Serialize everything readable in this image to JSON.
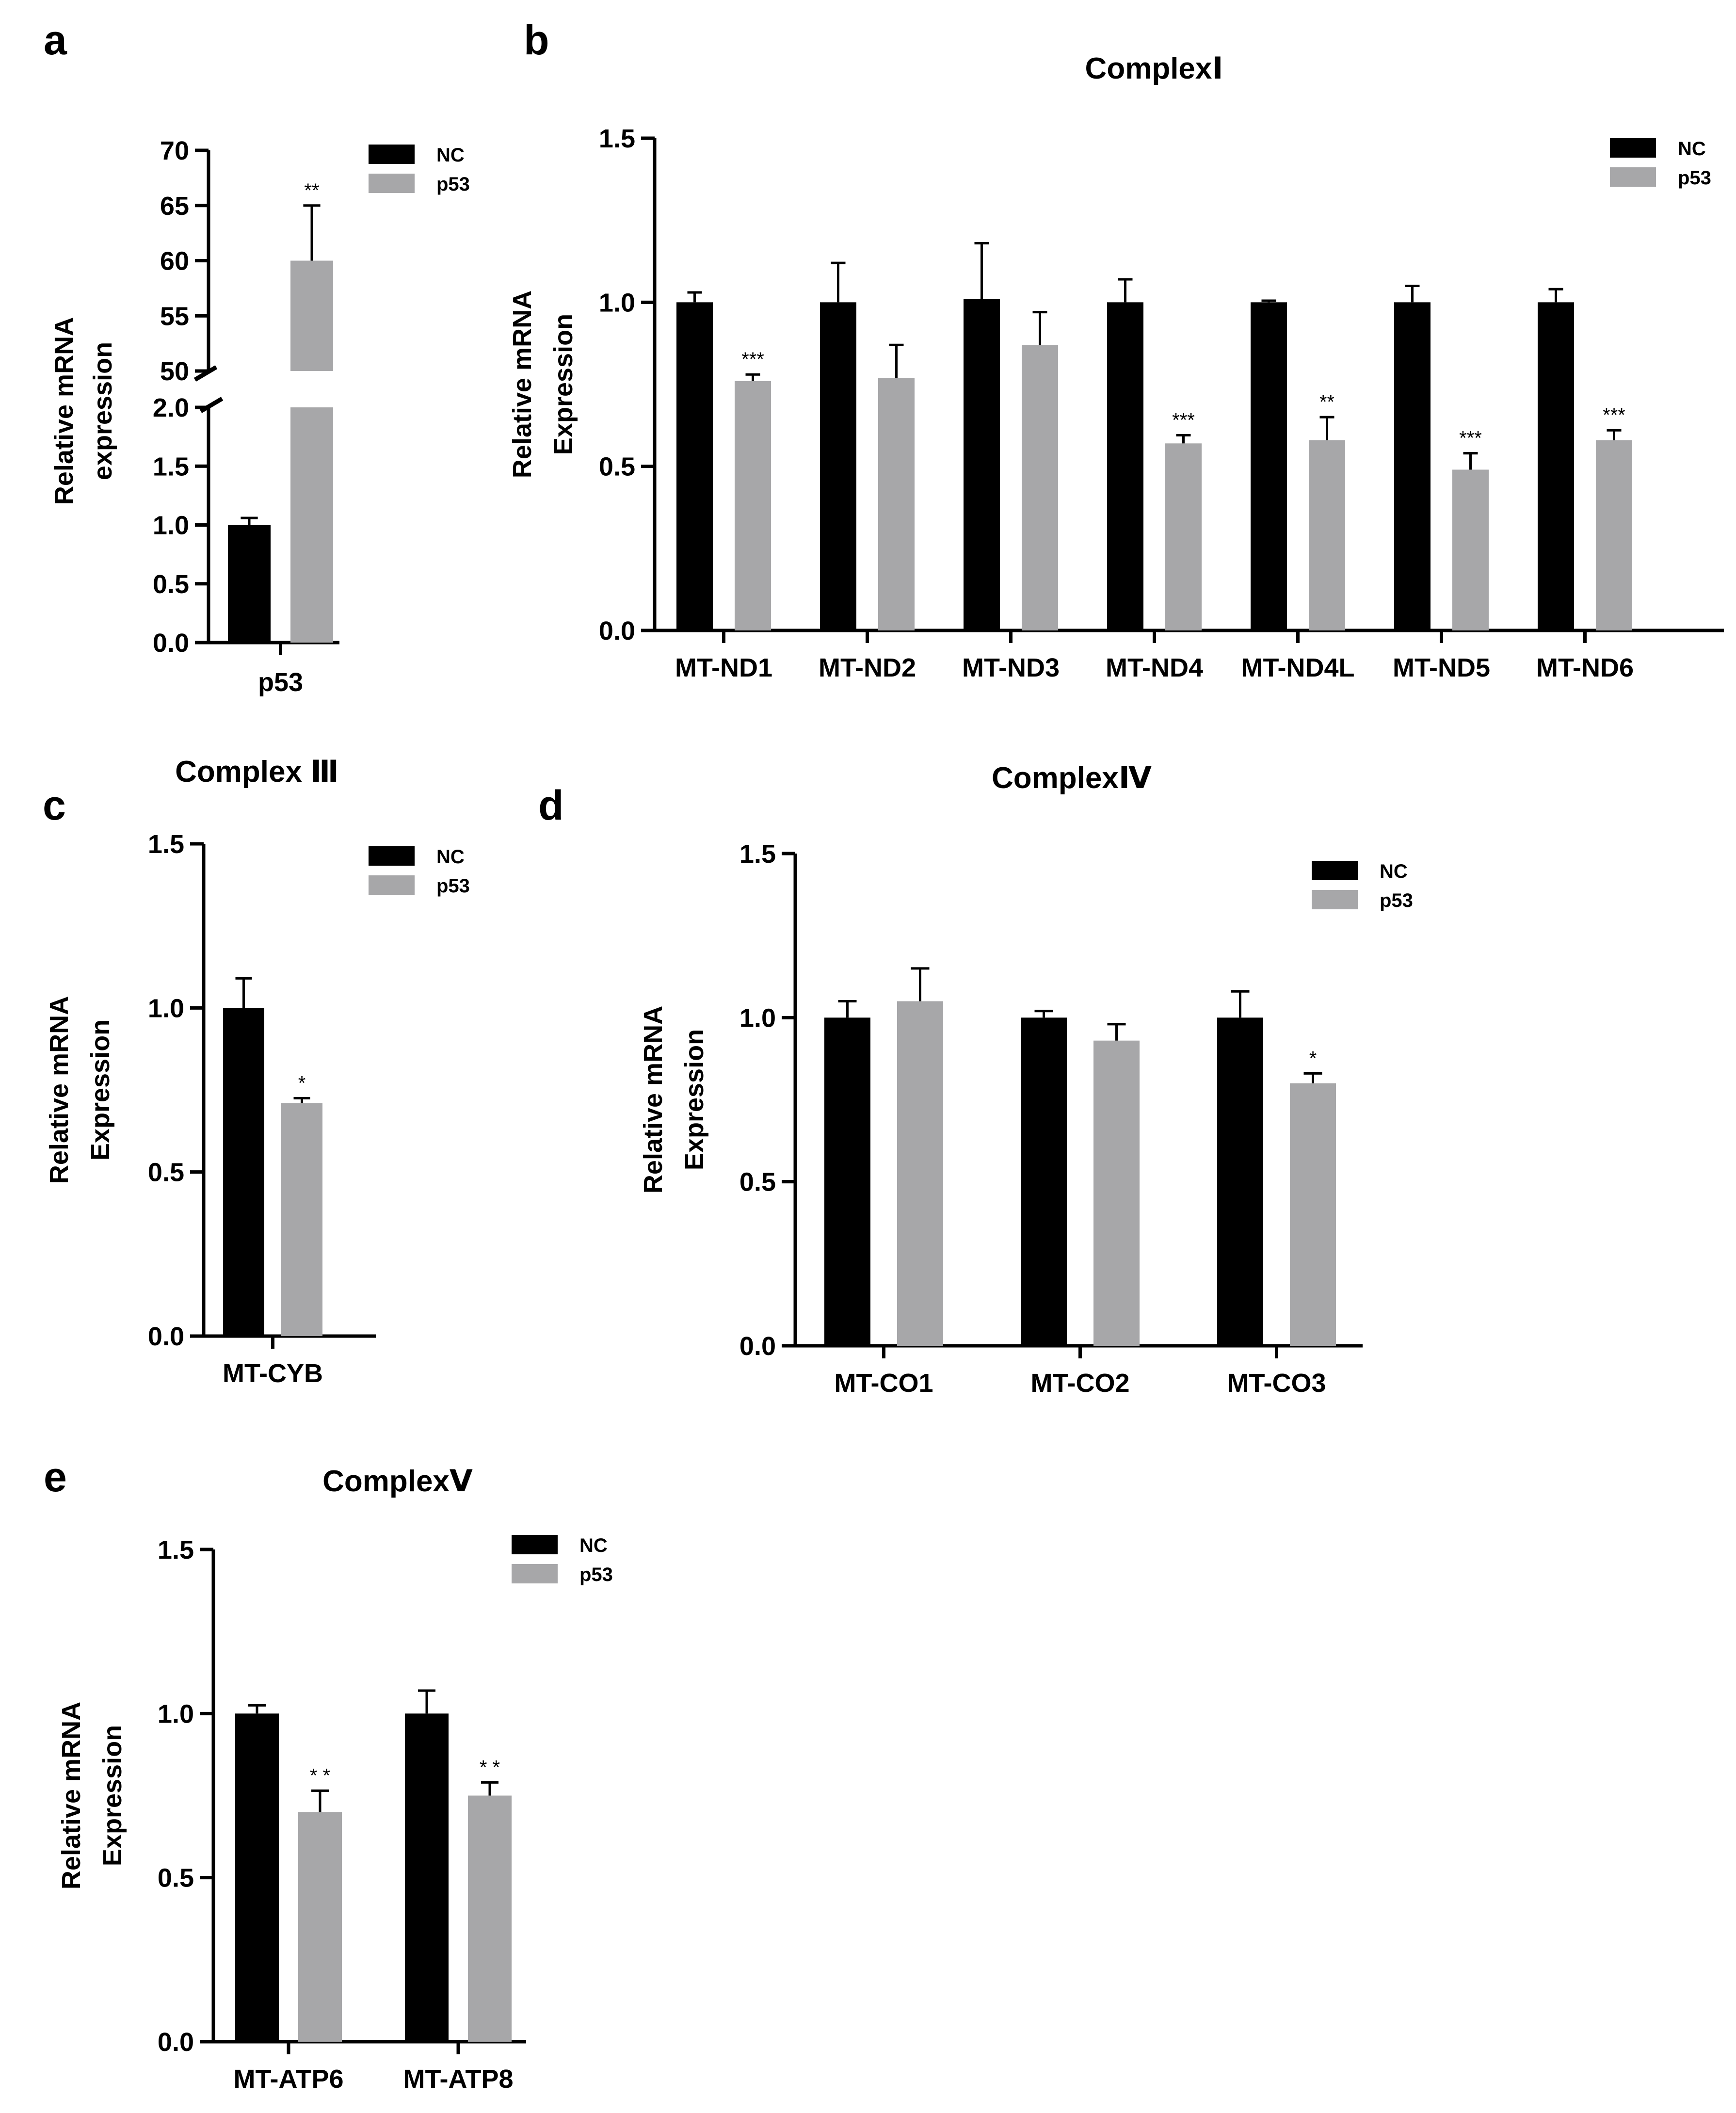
{
  "colors": {
    "NC": "#000000",
    "p53": "#a7a7a9"
  },
  "legend": [
    "NC",
    "p53"
  ],
  "chart_data": [
    {
      "panel": "a",
      "type": "bar",
      "title": "",
      "xlabel": "",
      "ylabel": [
        "Relative mRNA",
        "expression"
      ],
      "categories": [
        "p53"
      ],
      "series": [
        {
          "name": "NC",
          "values": [
            1.0
          ],
          "errors": [
            0.06
          ]
        },
        {
          "name": "p53",
          "values": [
            60.0
          ],
          "errors": [
            5.0
          ]
        }
      ],
      "significance": [
        "**"
      ],
      "axis_break": {
        "lower": [
          0,
          2.0
        ],
        "upper": [
          50,
          70
        ]
      },
      "ticks_lower": [
        "0.0",
        "0.5",
        "1.0",
        "1.5",
        "2.0"
      ],
      "ticks_upper": [
        "50",
        "55",
        "60",
        "65",
        "70"
      ]
    },
    {
      "panel": "b",
      "type": "bar",
      "title": "ComplexⅠ",
      "xlabel": "",
      "ylabel": [
        "Relative mRNA",
        "Expression"
      ],
      "ylim": [
        0,
        1.5
      ],
      "ticks": [
        "0.0",
        "0.5",
        "1.0",
        "1.5"
      ],
      "categories": [
        "MT-ND1",
        "MT-ND2",
        "MT-ND3",
        "MT-ND4",
        "MT-ND4L",
        "MT-ND5",
        "MT-ND6"
      ],
      "series": [
        {
          "name": "NC",
          "values": [
            1.0,
            1.0,
            1.01,
            1.0,
            1.0,
            1.0,
            1.0
          ],
          "errors": [
            0.03,
            0.12,
            0.17,
            0.07,
            0.005,
            0.05,
            0.04
          ]
        },
        {
          "name": "p53",
          "values": [
            0.76,
            0.77,
            0.87,
            0.57,
            0.58,
            0.49,
            0.58
          ],
          "errors": [
            0.02,
            0.1,
            0.1,
            0.025,
            0.07,
            0.05,
            0.03
          ]
        }
      ],
      "significance": [
        "***",
        "",
        "",
        "***",
        "**",
        "***",
        "***"
      ]
    },
    {
      "panel": "c",
      "type": "bar",
      "title": "Complex Ⅲ",
      "xlabel": "",
      "ylabel": [
        "Relative mRNA",
        "Expression"
      ],
      "ylim": [
        0,
        1.5
      ],
      "ticks": [
        "0.0",
        "0.5",
        "1.0",
        "1.5"
      ],
      "categories": [
        "MT-CYB"
      ],
      "series": [
        {
          "name": "NC",
          "values": [
            1.0
          ],
          "errors": [
            0.09
          ]
        },
        {
          "name": "p53",
          "values": [
            0.71
          ],
          "errors": [
            0.015
          ]
        }
      ],
      "significance": [
        "*"
      ]
    },
    {
      "panel": "d",
      "type": "bar",
      "title": "ComplexⅣ",
      "xlabel": "",
      "ylabel": [
        "Relative mRNA",
        "Expression"
      ],
      "ylim": [
        0,
        1.5
      ],
      "ticks": [
        "0.0",
        "0.5",
        "1.0",
        "1.5"
      ],
      "categories": [
        "MT-CO1",
        "MT-CO2",
        "MT-CO3"
      ],
      "series": [
        {
          "name": "NC",
          "values": [
            1.0,
            1.0,
            1.0
          ],
          "errors": [
            0.05,
            0.02,
            0.08
          ]
        },
        {
          "name": "p53",
          "values": [
            1.05,
            0.93,
            0.8
          ],
          "errors": [
            0.1,
            0.05,
            0.03
          ]
        }
      ],
      "significance": [
        "",
        "",
        "*"
      ]
    },
    {
      "panel": "e",
      "type": "bar",
      "title": "ComplexⅤ",
      "xlabel": "",
      "ylabel": [
        "Relative mRNA",
        "Expression"
      ],
      "ylim": [
        0,
        1.5
      ],
      "ticks": [
        "0.0",
        "0.5",
        "1.0",
        "1.5"
      ],
      "categories": [
        "MT-ATP6",
        "MT-ATP8"
      ],
      "series": [
        {
          "name": "NC",
          "values": [
            1.0,
            1.0
          ],
          "errors": [
            0.025,
            0.07
          ]
        },
        {
          "name": "p53",
          "values": [
            0.7,
            0.75
          ],
          "errors": [
            0.065,
            0.04
          ]
        }
      ],
      "significance": [
        "* *",
        "* *"
      ]
    }
  ]
}
